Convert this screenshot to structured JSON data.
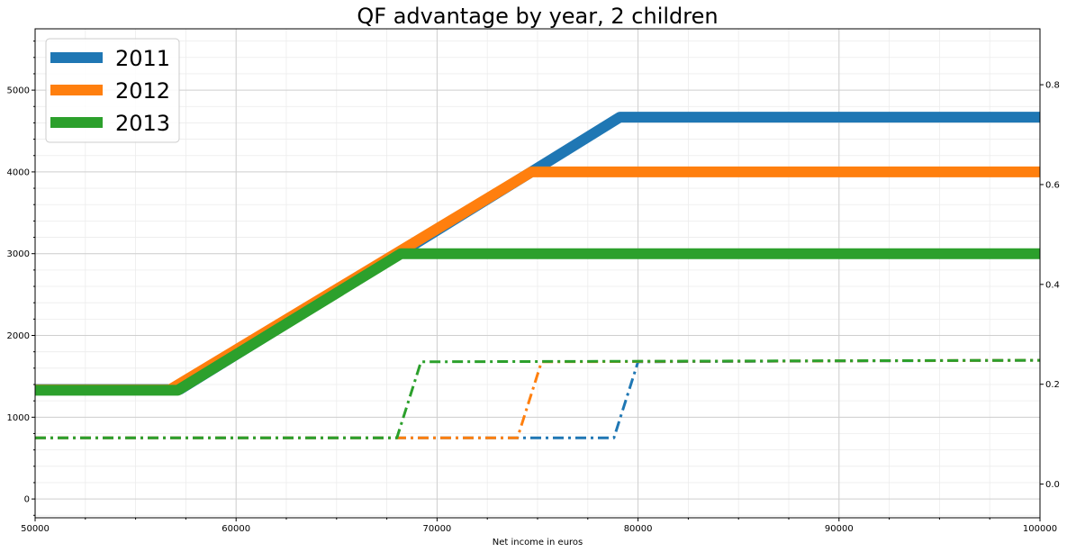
{
  "chart_data": {
    "type": "line",
    "title": "QF advantage by year, 2 children",
    "xlabel": "Net income in euros",
    "ylabel": "",
    "xlim": [
      50000,
      100000
    ],
    "ylim": [
      -230,
      5750
    ],
    "y2lim": [
      -0.0675,
      0.912
    ],
    "x_ticks": [
      50000,
      60000,
      70000,
      80000,
      90000,
      100000
    ],
    "y_ticks": [
      0,
      1000,
      2000,
      3000,
      4000,
      5000
    ],
    "y2_ticks": [
      0.0,
      0.2,
      0.4,
      0.6,
      0.8
    ],
    "y2_tick_labels": [
      "0.0",
      "0.2",
      "0.4",
      "0.6",
      "0.8"
    ],
    "grid": true,
    "minor_grid": true,
    "legend_position": "top-left",
    "colors": {
      "2011": "#1f77b4",
      "2012": "#ff7f0e",
      "2013": "#2ca02c"
    },
    "series": [
      {
        "name": "2011",
        "axis": "left",
        "style": "solid",
        "color": "#1f77b4",
        "x": [
          50000,
          56800,
          57200,
          79100,
          100000
        ],
        "y": [
          1340,
          1340,
          1340,
          4670,
          4670
        ]
      },
      {
        "name": "2012",
        "axis": "left",
        "style": "solid",
        "color": "#ff7f0e",
        "x": [
          50000,
          56700,
          74700,
          100000
        ],
        "y": [
          1335,
          1335,
          4000,
          4000
        ]
      },
      {
        "name": "2013",
        "axis": "left",
        "style": "solid",
        "color": "#2ca02c",
        "x": [
          50000,
          57100,
          68200,
          100000
        ],
        "y": [
          1330,
          1330,
          3000,
          3000
        ]
      }
    ],
    "rate_series": [
      {
        "name": "2011 rate",
        "axis": "right",
        "style": "dashdot",
        "color": "#1f77b4",
        "x": [
          50000,
          78800,
          80000,
          100000
        ],
        "y": [
          0.0926,
          0.0926,
          0.245,
          0.248
        ]
      },
      {
        "name": "2012 rate",
        "axis": "right",
        "style": "dashdot",
        "color": "#ff7f0e",
        "x": [
          50000,
          74000,
          75200,
          100000
        ],
        "y": [
          0.0926,
          0.0926,
          0.245,
          0.248
        ]
      },
      {
        "name": "2013 rate",
        "axis": "right",
        "style": "dashdot",
        "color": "#2ca02c",
        "x": [
          50000,
          68000,
          69200,
          100000
        ],
        "y": [
          0.0926,
          0.0926,
          0.245,
          0.248
        ]
      }
    ],
    "legend": [
      "2011",
      "2012",
      "2013"
    ]
  }
}
